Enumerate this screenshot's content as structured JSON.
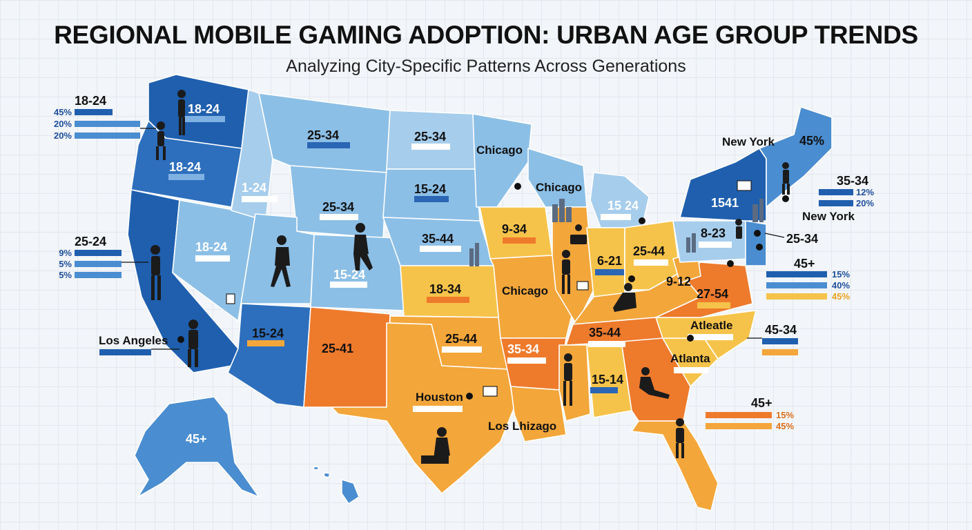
{
  "title": "REGIONAL MOBILE GAMING ADOPTION: URBAN AGE GROUP TRENDS",
  "subtitle": "Analyzing City-Specific Patterns Across Generations",
  "colors": {
    "dark_blue": "#1f5fae",
    "mid_blue": "#4a8dd0",
    "light_blue": "#8cbfe6",
    "pale_blue": "#a6cdec",
    "yellow": "#f6c34a",
    "orange": "#f3a63a",
    "deep_orange": "#ee7a2c"
  },
  "region_labels": [
    {
      "text": "18-24"
    },
    {
      "text": "18-24"
    },
    {
      "text": "25-34"
    },
    {
      "text": "25-34"
    },
    {
      "text": "1-24"
    },
    {
      "text": "15-24"
    },
    {
      "text": "25-34"
    },
    {
      "text": "18-24"
    },
    {
      "text": "35-44"
    },
    {
      "text": "15-24"
    },
    {
      "text": "15-24"
    },
    {
      "text": "25-41"
    },
    {
      "text": "18-34"
    },
    {
      "text": "25-44"
    },
    {
      "text": "35-34"
    },
    {
      "text": "9-34"
    },
    {
      "text": "15 24"
    },
    {
      "text": "6-21"
    },
    {
      "text": "25-44"
    },
    {
      "text": "8-23"
    },
    {
      "text": "25-34"
    },
    {
      "text": "9-12"
    },
    {
      "text": "27-54"
    },
    {
      "text": "35-44"
    },
    {
      "text": "15-14"
    },
    {
      "text": "45+"
    },
    {
      "text": "45%"
    },
    {
      "text": "1541"
    }
  ],
  "city_labels": [
    {
      "text": "Chicago"
    },
    {
      "text": "Chicago"
    },
    {
      "text": "Chicago"
    },
    {
      "text": "New York"
    },
    {
      "text": "New York"
    },
    {
      "text": "Los Angeles"
    },
    {
      "text": "Houston"
    },
    {
      "text": "Los Lhizago"
    },
    {
      "text": "Atleatle"
    },
    {
      "text": "Atlanta"
    }
  ],
  "legends": {
    "nw": {
      "heading": "18-24",
      "values": [
        "45%",
        "20%",
        "20%"
      ]
    },
    "ca": {
      "heading": "25-24",
      "values": [
        "9%",
        "5%",
        "5%"
      ]
    },
    "ne": {
      "heading": "35-34",
      "values": [
        "12%",
        "20%"
      ]
    },
    "mid": {
      "heading": "45+",
      "values": [
        "15%",
        "40%",
        "45%"
      ]
    },
    "se": {
      "heading": "45-34"
    },
    "fl": {
      "heading": "45+",
      "values": [
        "15%",
        "45%"
      ]
    }
  }
}
